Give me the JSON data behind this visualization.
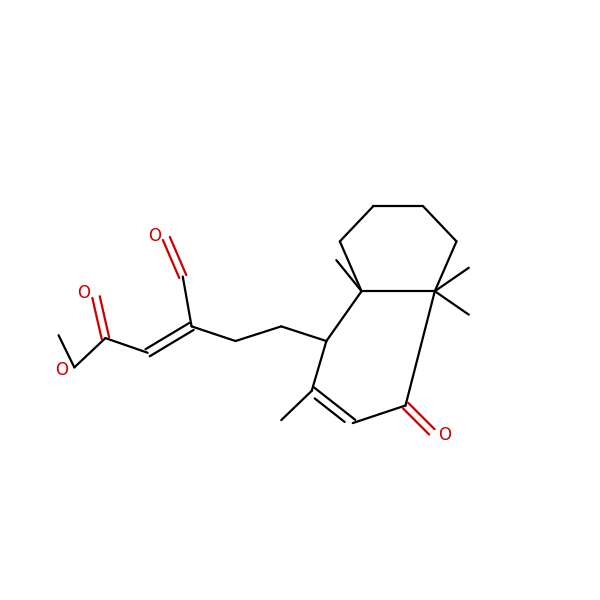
{
  "bg_color": "#ffffff",
  "bond_color": "#000000",
  "oxygen_color": "#cc0000",
  "line_width": 1.6,
  "figsize": [
    6.0,
    6.0
  ],
  "dpi": 100,
  "xlim": [
    0,
    10
  ],
  "ylim": [
    1,
    9
  ]
}
